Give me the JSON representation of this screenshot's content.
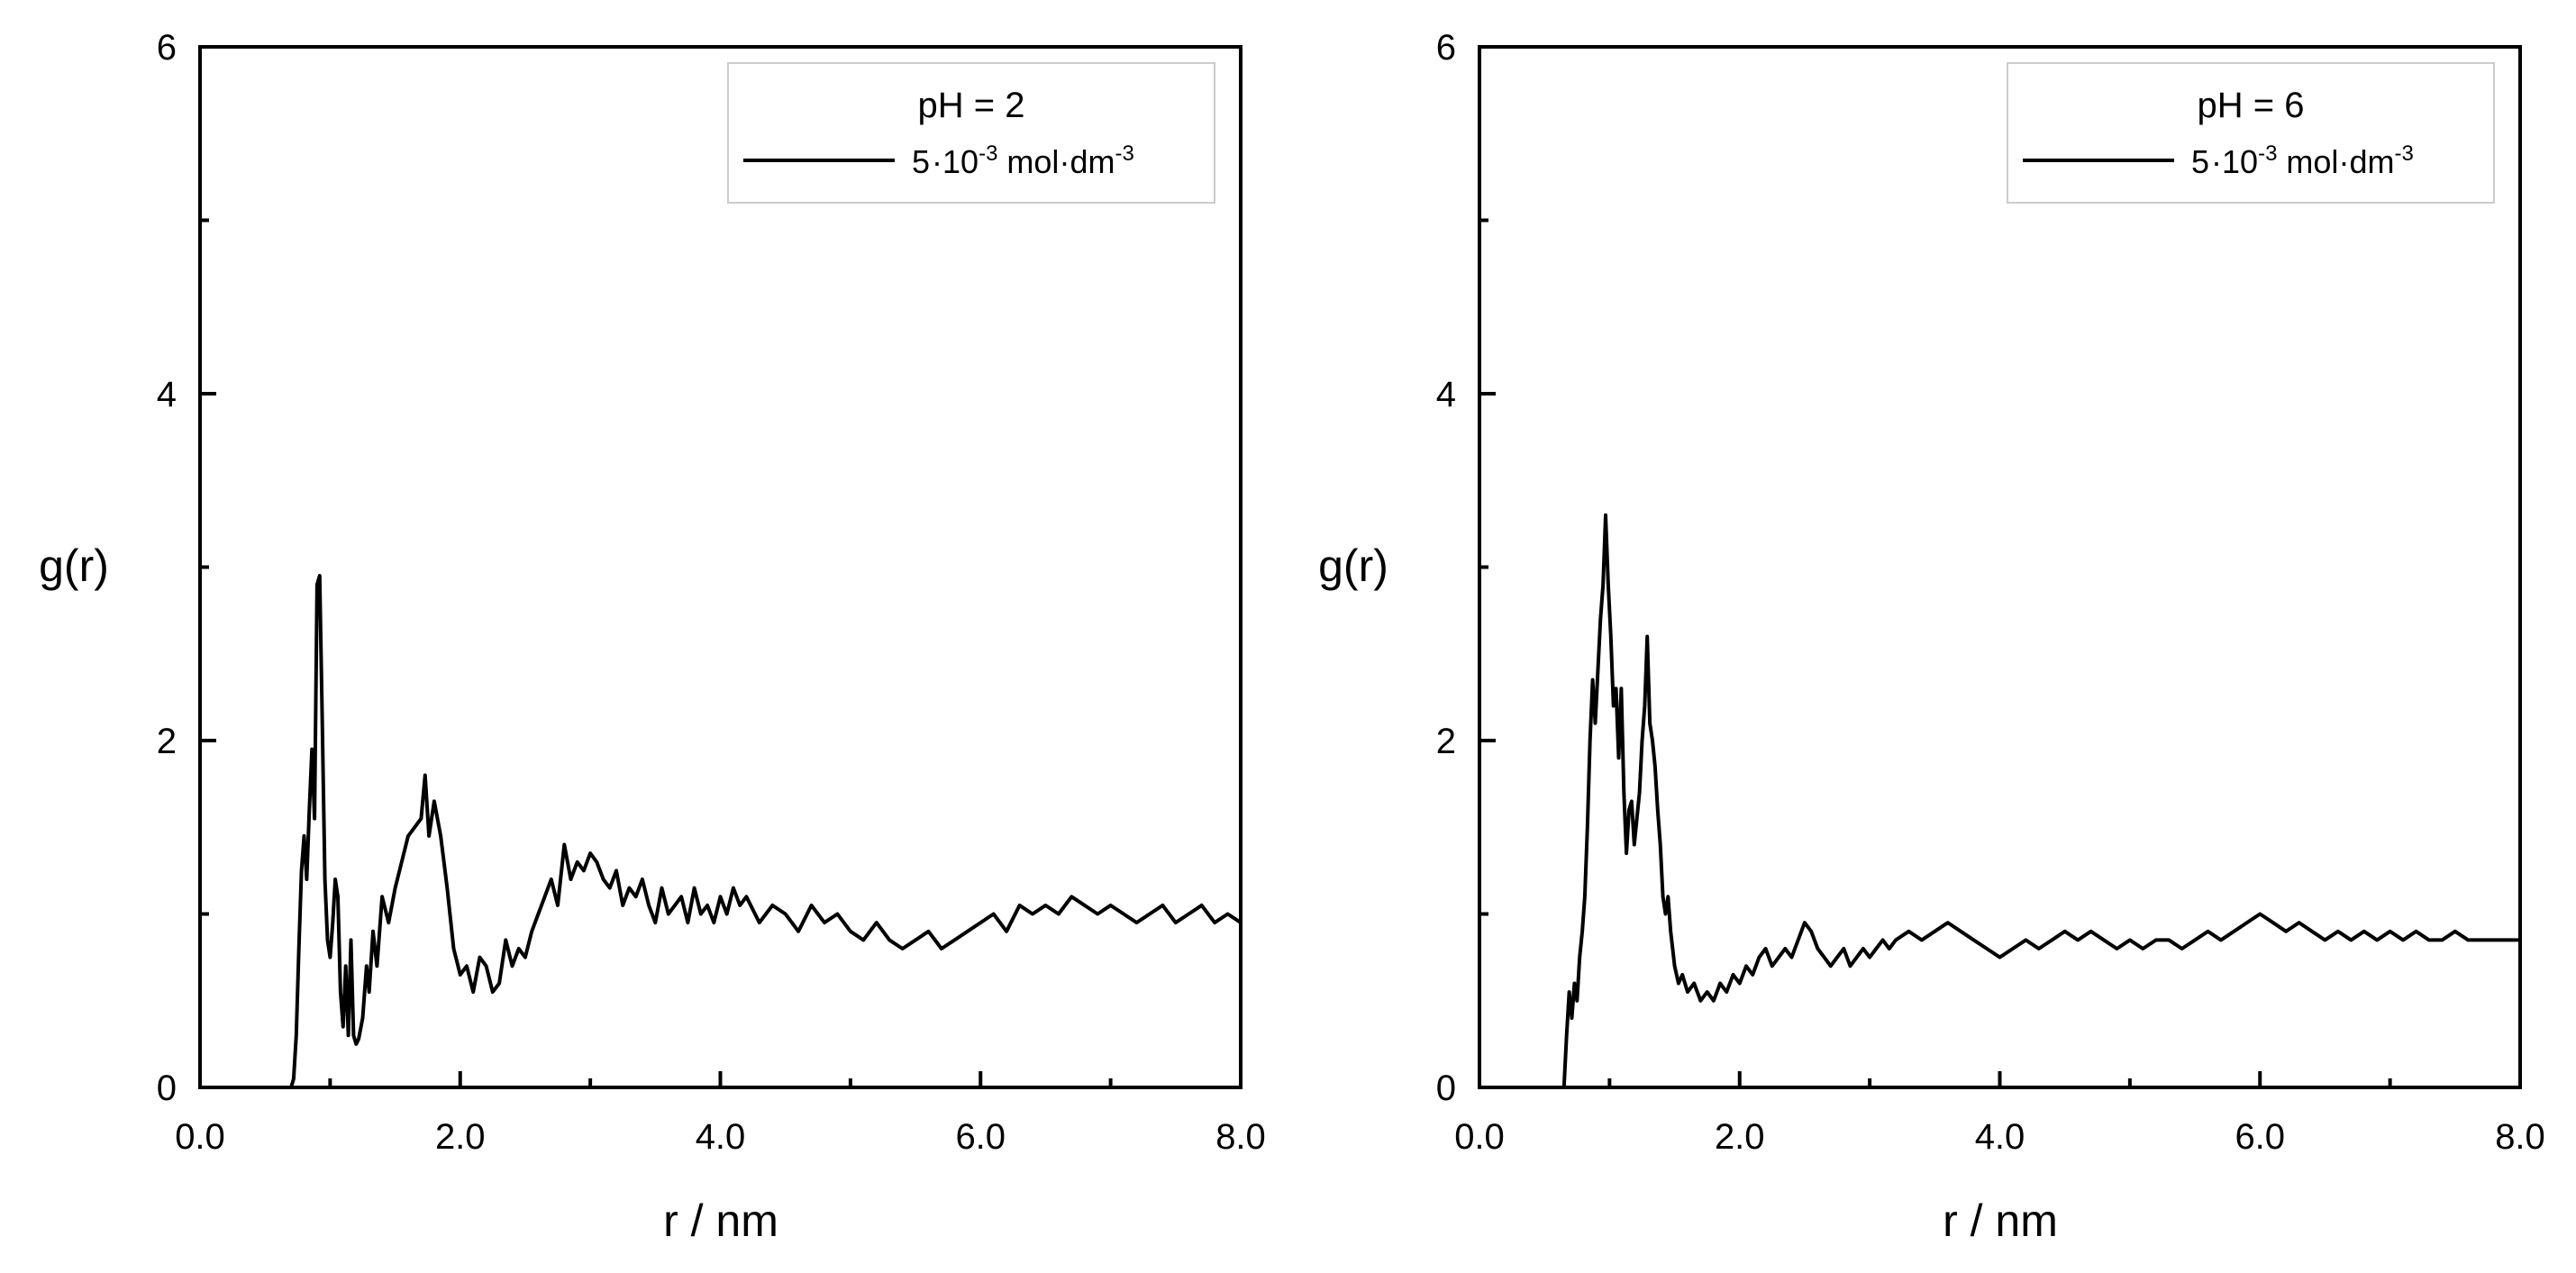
{
  "chart_data": [
    {
      "type": "line",
      "xlabel": "r / nm",
      "ylabel": "g(r)",
      "xlim": [
        0,
        8
      ],
      "ylim": [
        0,
        6
      ],
      "xticks": [
        0,
        2,
        4,
        6,
        8
      ],
      "xtick_labels": [
        "0.0",
        "2.0",
        "4.0",
        "6.0",
        "8.0"
      ],
      "yticks": [
        0,
        2,
        4,
        6
      ],
      "ytick_labels": [
        "0",
        "2",
        "4",
        "6"
      ],
      "legend": {
        "title": "pH = 2",
        "entry": {
          "mantissa": "5",
          "base": "10",
          "exponent": "-3",
          "unit": "mol",
          "unit2": "dm",
          "unit2_exponent": "-3"
        }
      },
      "series": [
        {
          "name": "5·10-3 mol·dm-3",
          "x": [
            0,
            0.7,
            0.72,
            0.74,
            0.76,
            0.78,
            0.8,
            0.82,
            0.84,
            0.86,
            0.88,
            0.9,
            0.92,
            0.94,
            0.96,
            0.98,
            1.0,
            1.02,
            1.04,
            1.06,
            1.08,
            1.1,
            1.12,
            1.14,
            1.16,
            1.18,
            1.2,
            1.22,
            1.25,
            1.28,
            1.3,
            1.33,
            1.36,
            1.4,
            1.45,
            1.5,
            1.55,
            1.6,
            1.65,
            1.7,
            1.73,
            1.76,
            1.8,
            1.85,
            1.9,
            1.95,
            2.0,
            2.05,
            2.1,
            2.15,
            2.2,
            2.25,
            2.3,
            2.35,
            2.4,
            2.45,
            2.5,
            2.55,
            2.6,
            2.65,
            2.7,
            2.75,
            2.8,
            2.85,
            2.9,
            2.95,
            3.0,
            3.05,
            3.1,
            3.15,
            3.2,
            3.25,
            3.3,
            3.35,
            3.4,
            3.45,
            3.5,
            3.55,
            3.6,
            3.65,
            3.7,
            3.75,
            3.8,
            3.85,
            3.9,
            3.95,
            4.0,
            4.05,
            4.1,
            4.15,
            4.2,
            4.3,
            4.4,
            4.5,
            4.6,
            4.7,
            4.8,
            4.9,
            5.0,
            5.1,
            5.2,
            5.3,
            5.4,
            5.5,
            5.6,
            5.7,
            5.8,
            5.9,
            6.0,
            6.1,
            6.2,
            6.3,
            6.4,
            6.5,
            6.6,
            6.7,
            6.8,
            6.9,
            7.0,
            7.1,
            7.2,
            7.3,
            7.4,
            7.5,
            7.6,
            7.7,
            7.8,
            7.9,
            8.0
          ],
          "y": [
            0,
            0,
            0.05,
            0.3,
            0.8,
            1.25,
            1.45,
            1.2,
            1.6,
            1.95,
            1.55,
            2.9,
            2.95,
            2.1,
            1.2,
            0.85,
            0.75,
            0.95,
            1.2,
            1.1,
            0.55,
            0.35,
            0.7,
            0.3,
            0.85,
            0.3,
            0.25,
            0.28,
            0.4,
            0.7,
            0.55,
            0.9,
            0.7,
            1.1,
            0.95,
            1.15,
            1.3,
            1.45,
            1.5,
            1.55,
            1.8,
            1.45,
            1.65,
            1.45,
            1.15,
            0.8,
            0.65,
            0.7,
            0.55,
            0.75,
            0.7,
            0.55,
            0.6,
            0.85,
            0.7,
            0.8,
            0.75,
            0.9,
            1.0,
            1.1,
            1.2,
            1.05,
            1.4,
            1.2,
            1.3,
            1.25,
            1.35,
            1.3,
            1.2,
            1.15,
            1.25,
            1.05,
            1.15,
            1.1,
            1.2,
            1.05,
            0.95,
            1.15,
            1.0,
            1.05,
            1.1,
            0.95,
            1.15,
            1.0,
            1.05,
            0.95,
            1.1,
            1.0,
            1.15,
            1.05,
            1.1,
            0.95,
            1.05,
            1.0,
            0.9,
            1.05,
            0.95,
            1.0,
            0.9,
            0.85,
            0.95,
            0.85,
            0.8,
            0.85,
            0.9,
            0.8,
            0.85,
            0.9,
            0.95,
            1.0,
            0.9,
            1.05,
            1.0,
            1.05,
            1.0,
            1.1,
            1.05,
            1.0,
            1.05,
            1.0,
            0.95,
            1.0,
            1.05,
            0.95,
            1.0,
            1.05,
            0.95,
            1.0,
            0.95
          ]
        }
      ]
    },
    {
      "type": "line",
      "xlabel": "r / nm",
      "ylabel": "g(r)",
      "xlim": [
        0,
        8
      ],
      "ylim": [
        0,
        6
      ],
      "xticks": [
        0,
        2,
        4,
        6,
        8
      ],
      "xtick_labels": [
        "0.0",
        "2.0",
        "4.0",
        "6.0",
        "8.0"
      ],
      "yticks": [
        0,
        2,
        4,
        6
      ],
      "ytick_labels": [
        "0",
        "2",
        "4",
        "6"
      ],
      "legend": {
        "title": "pH = 6",
        "entry": {
          "mantissa": "5",
          "base": "10",
          "exponent": "-3",
          "unit": "mol",
          "unit2": "dm",
          "unit2_exponent": "-3"
        }
      },
      "series": [
        {
          "name": "5·10-3 mol·dm-3",
          "x": [
            0,
            0.65,
            0.67,
            0.69,
            0.71,
            0.73,
            0.75,
            0.77,
            0.79,
            0.81,
            0.83,
            0.85,
            0.87,
            0.89,
            0.91,
            0.93,
            0.95,
            0.97,
            0.99,
            1.01,
            1.03,
            1.05,
            1.07,
            1.09,
            1.11,
            1.13,
            1.15,
            1.17,
            1.19,
            1.21,
            1.23,
            1.25,
            1.27,
            1.29,
            1.31,
            1.33,
            1.35,
            1.37,
            1.39,
            1.41,
            1.43,
            1.45,
            1.47,
            1.5,
            1.53,
            1.56,
            1.6,
            1.65,
            1.7,
            1.75,
            1.8,
            1.85,
            1.9,
            1.95,
            2.0,
            2.05,
            2.1,
            2.15,
            2.2,
            2.25,
            2.3,
            2.35,
            2.4,
            2.45,
            2.5,
            2.55,
            2.6,
            2.65,
            2.7,
            2.75,
            2.8,
            2.85,
            2.9,
            2.95,
            3.0,
            3.05,
            3.1,
            3.15,
            3.2,
            3.3,
            3.4,
            3.5,
            3.6,
            3.7,
            3.8,
            3.9,
            4.0,
            4.1,
            4.2,
            4.3,
            4.4,
            4.5,
            4.6,
            4.7,
            4.8,
            4.9,
            5.0,
            5.1,
            5.2,
            5.3,
            5.4,
            5.5,
            5.6,
            5.7,
            5.8,
            5.9,
            6.0,
            6.1,
            6.2,
            6.3,
            6.4,
            6.5,
            6.6,
            6.7,
            6.8,
            6.9,
            7.0,
            7.1,
            7.2,
            7.3,
            7.4,
            7.5,
            7.6,
            7.7,
            7.8,
            7.9,
            8.0
          ],
          "y": [
            0,
            0,
            0.3,
            0.55,
            0.4,
            0.6,
            0.5,
            0.75,
            0.9,
            1.1,
            1.5,
            2.0,
            2.35,
            2.1,
            2.4,
            2.7,
            2.9,
            3.3,
            2.9,
            2.6,
            2.2,
            2.3,
            1.9,
            2.3,
            1.7,
            1.35,
            1.6,
            1.65,
            1.4,
            1.55,
            1.7,
            2.0,
            2.2,
            2.6,
            2.1,
            2.0,
            1.85,
            1.6,
            1.4,
            1.1,
            1.0,
            1.1,
            0.9,
            0.7,
            0.6,
            0.65,
            0.55,
            0.6,
            0.5,
            0.55,
            0.5,
            0.6,
            0.55,
            0.65,
            0.6,
            0.7,
            0.65,
            0.75,
            0.8,
            0.7,
            0.75,
            0.8,
            0.75,
            0.85,
            0.95,
            0.9,
            0.8,
            0.75,
            0.7,
            0.75,
            0.8,
            0.7,
            0.75,
            0.8,
            0.75,
            0.8,
            0.85,
            0.8,
            0.85,
            0.9,
            0.85,
            0.9,
            0.95,
            0.9,
            0.85,
            0.8,
            0.75,
            0.8,
            0.85,
            0.8,
            0.85,
            0.9,
            0.85,
            0.9,
            0.85,
            0.8,
            0.85,
            0.8,
            0.85,
            0.85,
            0.8,
            0.85,
            0.9,
            0.85,
            0.9,
            0.95,
            1.0,
            0.95,
            0.9,
            0.95,
            0.9,
            0.85,
            0.9,
            0.85,
            0.9,
            0.85,
            0.9,
            0.85,
            0.9,
            0.85,
            0.85,
            0.9,
            0.85,
            0.85,
            0.85,
            0.85,
            0.85
          ]
        }
      ]
    }
  ]
}
